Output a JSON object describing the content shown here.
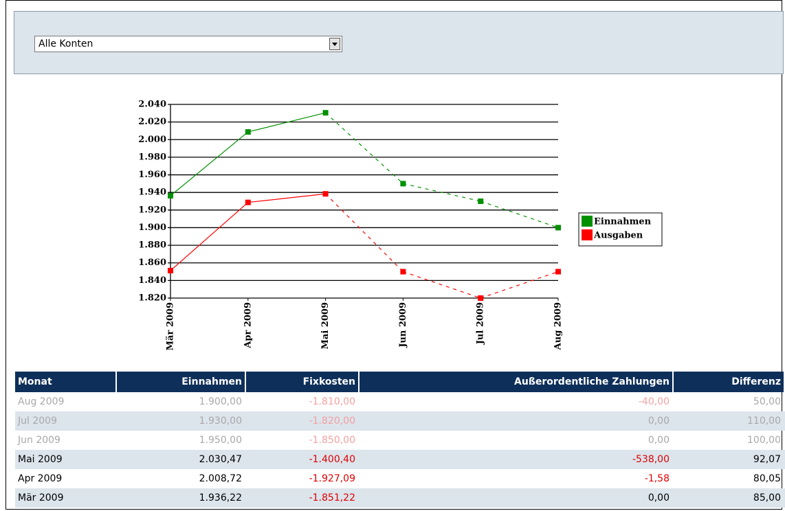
{
  "select": {
    "value": "Alle Konten"
  },
  "chart_data": {
    "type": "line",
    "categories": [
      "Mär 2009",
      "Apr 2009",
      "Mai 2009",
      "Jun 2009",
      "Jul 2009",
      "Aug 2009"
    ],
    "series": [
      {
        "name": "Einnahmen",
        "color": "#009000",
        "values": [
          1936.22,
          2008.72,
          2030.47,
          1950,
          1930,
          1900
        ],
        "dashed": [
          false,
          false,
          false,
          true,
          true,
          true
        ]
      },
      {
        "name": "Ausgaben",
        "color": "#ff0000",
        "values": [
          1851.22,
          1928.67,
          1938.4,
          1850,
          1820,
          1850
        ],
        "dashed": [
          false,
          false,
          false,
          true,
          true,
          true
        ]
      }
    ],
    "ylim": [
      1820,
      2040
    ],
    "yticks": [
      {
        "value": 1820,
        "label": "1.820"
      },
      {
        "value": 1840,
        "label": "1.840"
      },
      {
        "value": 1860,
        "label": "1.860"
      },
      {
        "value": 1880,
        "label": "1.880"
      },
      {
        "value": 1900,
        "label": "1.900"
      },
      {
        "value": 1920,
        "label": "1.920"
      },
      {
        "value": 1940,
        "label": "1.940"
      },
      {
        "value": 1960,
        "label": "1.960"
      },
      {
        "value": 1980,
        "label": "1.980"
      },
      {
        "value": 2000,
        "label": "2.000"
      },
      {
        "value": 2020,
        "label": "2.020"
      },
      {
        "value": 2040,
        "label": "2.040"
      }
    ],
    "grid": true,
    "legend": "right"
  },
  "table": {
    "columns": [
      "Monat",
      "Einnahmen",
      "Fixkosten",
      "Außerordentliche Zahlungen",
      "Differenz"
    ],
    "rows": [
      {
        "muted": true,
        "cells": [
          "Aug 2009",
          "1.900,00",
          "-1.810,00",
          "-40,00",
          "50,00"
        ]
      },
      {
        "muted": true,
        "cells": [
          "Jul 2009",
          "1.930,00",
          "-1.820,00",
          "0,00",
          "110,00"
        ]
      },
      {
        "muted": true,
        "cells": [
          "Jun 2009",
          "1.950,00",
          "-1.850,00",
          "0,00",
          "100,00"
        ]
      },
      {
        "muted": false,
        "cells": [
          "Mai 2009",
          "2.030,47",
          "-1.400,40",
          "-538,00",
          "92,07"
        ]
      },
      {
        "muted": false,
        "cells": [
          "Apr 2009",
          "2.008,72",
          "-1.927,09",
          "-1,58",
          "80,05"
        ]
      },
      {
        "muted": false,
        "cells": [
          "Mär 2009",
          "1.936,22",
          "-1.851,22",
          "0,00",
          "85,00"
        ]
      }
    ]
  }
}
